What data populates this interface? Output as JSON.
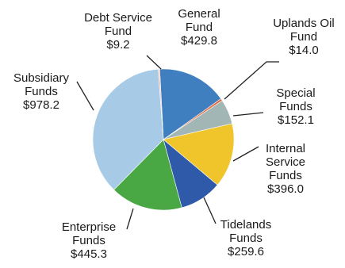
{
  "chart_data": {
    "type": "pie",
    "title": "",
    "unit": "$",
    "slices": [
      {
        "lines": [
          "General",
          "Fund"
        ],
        "value_label": "$429.8",
        "value": 429.8,
        "color": "#3f7fbf"
      },
      {
        "lines": [
          "Uplands Oil",
          "Fund"
        ],
        "value_label": "$14.0",
        "value": 14.0,
        "color": "#e2683a"
      },
      {
        "lines": [
          "Special",
          "Funds"
        ],
        "value_label": "$152.1",
        "value": 152.1,
        "color": "#a3b6b6"
      },
      {
        "lines": [
          "Internal",
          "Service",
          "Funds"
        ],
        "value_label": "$396.0",
        "value": 396.0,
        "color": "#efc52b"
      },
      {
        "lines": [
          "Tidelands",
          "Funds"
        ],
        "value_label": "$259.6",
        "value": 259.6,
        "color": "#2f5aa9"
      },
      {
        "lines": [
          "Enterprise",
          "Funds"
        ],
        "value_label": "$445.3",
        "value": 445.3,
        "color": "#49a844"
      },
      {
        "lines": [
          "Subsidiary",
          "Funds"
        ],
        "value_label": "$978.2",
        "value": 978.2,
        "color": "#a7cbe6"
      },
      {
        "lines": [
          "Debt Service",
          "Fund"
        ],
        "value_label": "$9.2",
        "value": 9.2,
        "color": "#f0b9a6"
      }
    ]
  }
}
